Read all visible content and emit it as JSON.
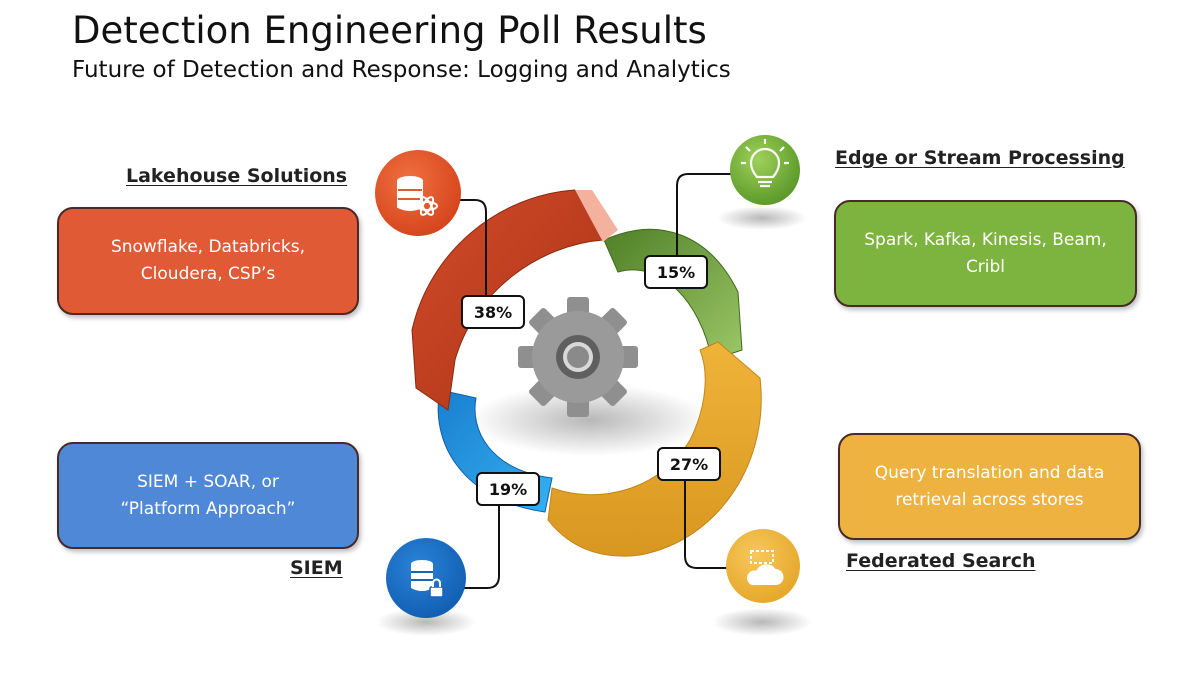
{
  "header": {
    "title": "Detection Engineering Poll Results",
    "subtitle": "Future of Detection and Response: Logging and Analytics"
  },
  "categories": [
    {
      "id": "lakehouse",
      "label": "Lakehouse Solutions",
      "percent": 38,
      "percent_label": "38%",
      "lines": [
        "Snowflake, Databricks,",
        "Cloudera, CSP’s"
      ],
      "color": "#e05a36",
      "ring_color": "#b7381d",
      "icon": "database-atom-icon"
    },
    {
      "id": "edge",
      "label": "Edge or Stream Processing",
      "percent": 15,
      "percent_label": "15%",
      "lines": [
        "Spark, Kafka, Kinesis, Beam,",
        "Cribl"
      ],
      "color": "#7db440",
      "ring_color": "#5f9433",
      "icon": "lightbulb-icon"
    },
    {
      "id": "federated",
      "label": "Federated Search",
      "percent": 27,
      "percent_label": "27%",
      "lines": [
        "Query translation and data",
        "retrieval across stores"
      ],
      "color": "#edb240",
      "ring_color": "#e4a328",
      "icon": "cloud-icon"
    },
    {
      "id": "siem",
      "label": "SIEM",
      "percent": 19,
      "percent_label": "19%",
      "lines": [
        "SIEM + SOAR, or",
        "“Platform Approach”"
      ],
      "color": "#4f88d6",
      "ring_color": "#1d90e0",
      "icon": "database-lock-icon"
    }
  ]
}
